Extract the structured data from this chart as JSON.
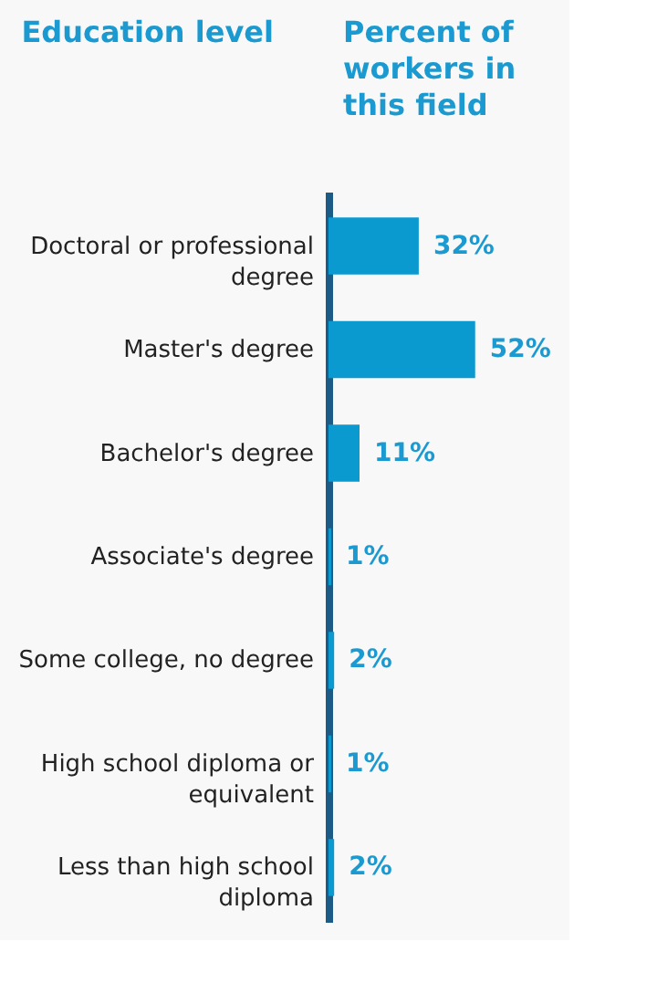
{
  "chart_data": {
    "type": "bar",
    "orientation": "horizontal",
    "ylabel": "Education level",
    "xlabel": "Percent of workers in this field",
    "categories": [
      "Doctoral or professional degree",
      "Master's degree",
      "Bachelor's degree",
      "Associate's degree",
      "Some college, no degree",
      "High school diploma or equivalent",
      "Less than high school diploma"
    ],
    "values": [
      32,
      52,
      11,
      1,
      2,
      1,
      2
    ],
    "value_labels": [
      "32%",
      "52%",
      "11%",
      "1%",
      "2%",
      "1%",
      "2%"
    ],
    "color": "#0a9ad0",
    "grid": false,
    "tick_labels": "y"
  }
}
